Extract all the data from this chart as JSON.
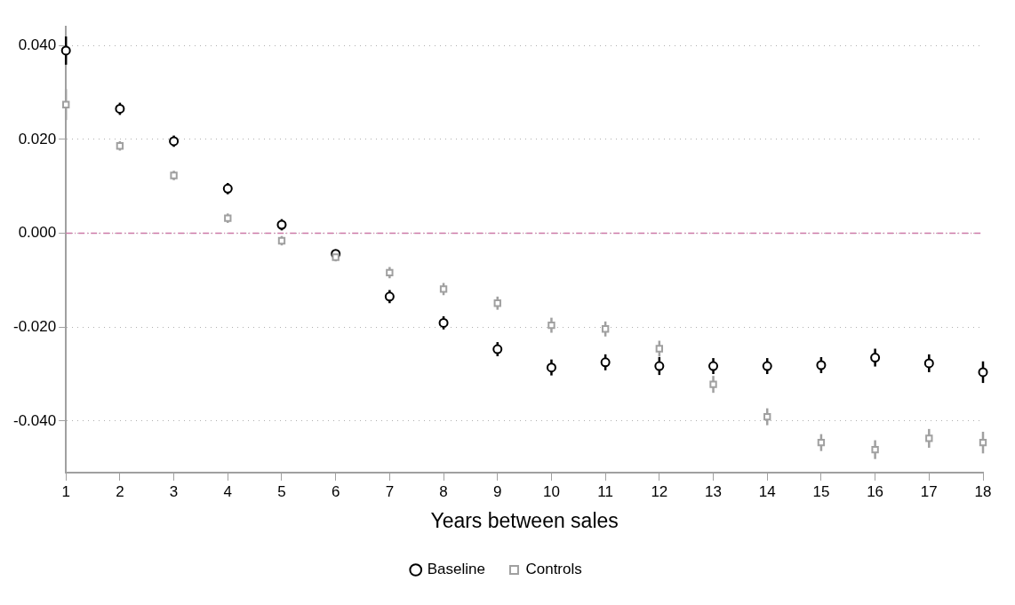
{
  "chart_data": {
    "type": "scatter",
    "xlabel": "Years between sales",
    "x": [
      1,
      2,
      3,
      4,
      5,
      6,
      7,
      8,
      9,
      10,
      11,
      12,
      13,
      14,
      15,
      16,
      17,
      18
    ],
    "series": [
      {
        "name": "Baseline",
        "color": "#000000",
        "marker": "circle",
        "values": [
          0.0389,
          0.0265,
          0.0196,
          0.0095,
          0.0018,
          -0.0044,
          -0.0135,
          -0.0191,
          -0.0247,
          -0.0286,
          -0.0275,
          -0.0283,
          -0.0283,
          -0.0283,
          -0.0281,
          -0.0265,
          -0.0277,
          -0.0296
        ],
        "errors": [
          0.003,
          0.0013,
          0.0012,
          0.0012,
          0.0012,
          0.0008,
          0.0014,
          0.0014,
          0.0015,
          0.0017,
          0.0017,
          0.0019,
          0.0017,
          0.0017,
          0.0017,
          0.0019,
          0.0019,
          0.0023
        ]
      },
      {
        "name": "Controls",
        "color": "#a0a0a0",
        "marker": "square",
        "values": [
          0.0274,
          0.0186,
          0.0123,
          0.0032,
          -0.0016,
          -0.0051,
          -0.0084,
          -0.0119,
          -0.0149,
          -0.0196,
          -0.0204,
          -0.0246,
          -0.0322,
          -0.0391,
          -0.0446,
          -0.0461,
          -0.0437,
          -0.0446
        ],
        "errors": [
          0.0033,
          0.001,
          0.001,
          0.001,
          0.001,
          0.0009,
          0.0012,
          0.0013,
          0.0014,
          0.0016,
          0.0016,
          0.0017,
          0.0018,
          0.0018,
          0.0018,
          0.002,
          0.002,
          0.0023
        ]
      }
    ],
    "xlim": [
      1,
      18
    ],
    "xticks": [
      1,
      2,
      3,
      4,
      5,
      6,
      7,
      8,
      9,
      10,
      11,
      12,
      13,
      14,
      15,
      16,
      17,
      18
    ],
    "ylim": [
      -0.051,
      0.044
    ],
    "yticks": [
      {
        "value": -0.04,
        "label": "-0.040"
      },
      {
        "value": -0.02,
        "label": "-0.020"
      },
      {
        "value": 0,
        "label": "0.000"
      },
      {
        "value": 0.02,
        "label": "0.020"
      },
      {
        "value": 0.04,
        "label": "0.040"
      }
    ],
    "grid": "y",
    "legend": "bottom",
    "ref_lines": [
      {
        "axis": "y",
        "value": 0,
        "color": "#cc79a7",
        "line_style": "dashed"
      }
    ]
  }
}
